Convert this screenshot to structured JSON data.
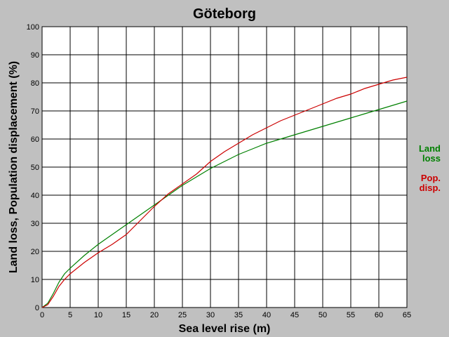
{
  "chart_data": {
    "type": "line",
    "title": "Göteborg",
    "xlabel": "Sea level rise (m)",
    "ylabel": "Land loss, Population displacement (%)",
    "xlim": [
      0,
      65
    ],
    "ylim": [
      0,
      100
    ],
    "xticks": [
      0,
      5,
      10,
      15,
      20,
      25,
      30,
      35,
      40,
      45,
      50,
      55,
      60,
      65
    ],
    "yticks": [
      0,
      10,
      20,
      30,
      40,
      50,
      60,
      70,
      80,
      90,
      100
    ],
    "grid": true,
    "legend": [
      {
        "lines": [
          "Land",
          "loss"
        ],
        "color": "#008000"
      },
      {
        "lines": [
          "Pop.",
          "disp."
        ],
        "color": "#cc0000"
      }
    ],
    "legend_position": "right",
    "series": [
      {
        "color": "#008000",
        "x": [
          0,
          1,
          2,
          3,
          4,
          5,
          7.5,
          10,
          12.5,
          15,
          17.5,
          20,
          22.5,
          25,
          27.5,
          30,
          32.5,
          35,
          37.5,
          40,
          42.5,
          45,
          47.5,
          50,
          52.5,
          55,
          57.5,
          60,
          62.5,
          65
        ],
        "values": [
          0,
          1.5,
          5,
          9,
          12,
          14,
          18.5,
          22.5,
          26,
          29.5,
          33,
          36.5,
          40,
          43.5,
          46.5,
          49.5,
          52,
          54.5,
          56.5,
          58.5,
          60,
          61.5,
          63,
          64.5,
          66,
          67.5,
          69,
          70.5,
          72,
          73.5
        ]
      },
      {
        "color": "#cc0000",
        "x": [
          0,
          1,
          2,
          3,
          4,
          5,
          7.5,
          10,
          12.5,
          15,
          17.5,
          20,
          22.5,
          25,
          27.5,
          30,
          32.5,
          35,
          37.5,
          40,
          42.5,
          45,
          47.5,
          50,
          52.5,
          55,
          57.5,
          60,
          62.5,
          65
        ],
        "values": [
          0,
          1,
          4,
          7.5,
          10,
          12,
          16,
          19.5,
          22.5,
          26,
          31,
          36,
          40.5,
          44,
          47.5,
          52,
          55.5,
          58.5,
          61.5,
          64,
          66.5,
          68.5,
          70.5,
          72.5,
          74.5,
          76,
          78,
          79.5,
          81,
          82
        ]
      }
    ]
  }
}
